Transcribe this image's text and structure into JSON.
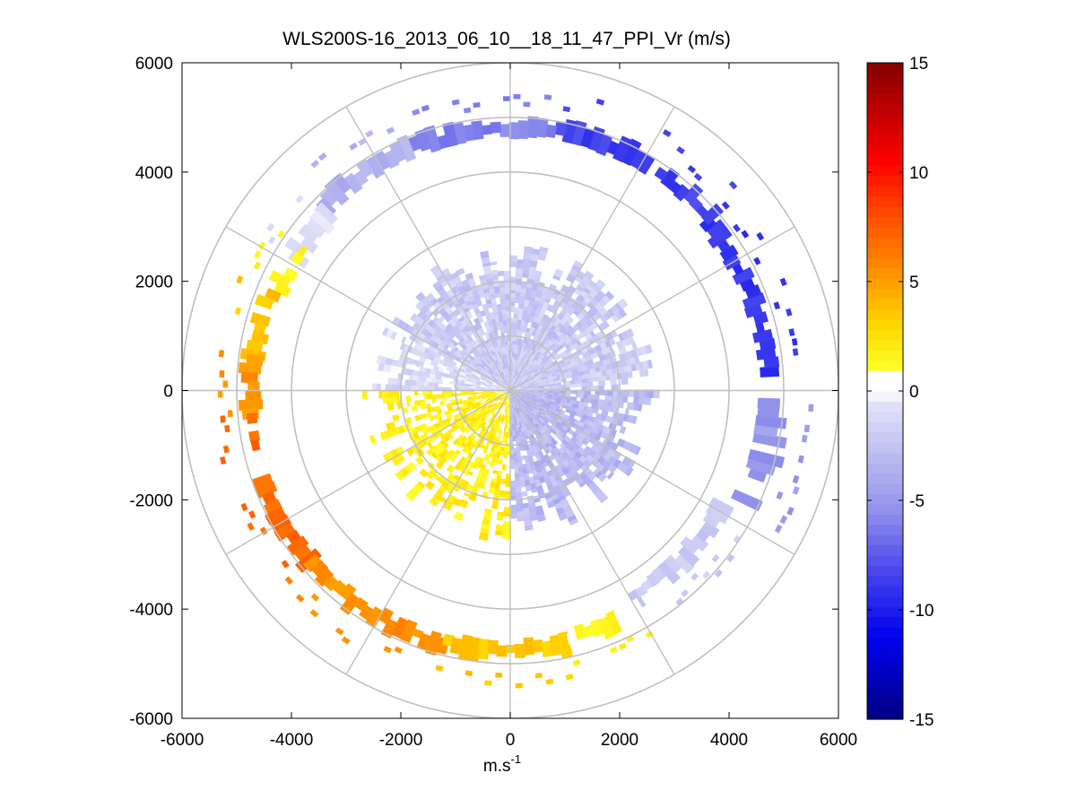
{
  "chart_data": {
    "type": "heatmap",
    "subtype": "polar-ppi-scan",
    "title": "WLS200S-16_2013_06_10__18_11_47_PPI_Vr (m/s)",
    "xlabel_base": "m.s",
    "xlabel_exp": "-1",
    "ylabel": "",
    "xlim": [
      -6000,
      6000
    ],
    "ylim": [
      -6000,
      6000
    ],
    "xticks": [
      -6000,
      -4000,
      -2000,
      0,
      2000,
      4000,
      6000
    ],
    "yticks": [
      -6000,
      -4000,
      -2000,
      0,
      2000,
      4000,
      6000
    ],
    "xtick_labels": [
      "-6000",
      "-4000",
      "-2000",
      "0",
      "2000",
      "4000",
      "6000"
    ],
    "ytick_labels": [
      "-6000",
      "-4000",
      "-2000",
      "0",
      "2000",
      "4000",
      "6000"
    ],
    "polar_grid": {
      "ring_radii": [
        1000,
        2000,
        3000,
        4000,
        5000,
        6000
      ],
      "spoke_angles_deg": [
        0,
        30,
        60,
        90,
        120,
        150,
        180,
        210,
        240,
        270,
        300,
        330
      ]
    },
    "colorbar": {
      "label": "",
      "range": [
        -15,
        15
      ],
      "ticks": [
        -15,
        -10,
        -5,
        0,
        5,
        10,
        15
      ],
      "tick_labels": [
        "-15",
        "-10",
        "-5",
        "0",
        "5",
        "10",
        "15"
      ],
      "colormap": "blue-white-red (white gap at 0 to 1)"
    },
    "inner_field": {
      "max_range_m": 2600,
      "sectors": [
        {
          "azimuth_from_deg": -90,
          "azimuth_to_deg": 0,
          "velocity_ms": -3
        },
        {
          "azimuth_from_deg": 0,
          "azimuth_to_deg": 150,
          "velocity_ms": -2
        },
        {
          "azimuth_from_deg": 150,
          "azimuth_to_deg": 180,
          "velocity_ms": -1
        },
        {
          "azimuth_from_deg": 180,
          "azimuth_to_deg": 270,
          "velocity_ms": 1.5
        }
      ]
    },
    "outer_arc_sectors": [
      {
        "azimuth_from_deg": -60,
        "azimuth_to_deg": -28,
        "r_inner_m": 4250,
        "r_outer_m": 4550,
        "velocity_ms": -2
      },
      {
        "azimuth_from_deg": -28,
        "azimuth_to_deg": -3,
        "r_inner_m": 4550,
        "r_outer_m": 5050,
        "velocity_ms": -5
      },
      {
        "azimuth_from_deg": 3,
        "azimuth_to_deg": 40,
        "r_inner_m": 4600,
        "r_outer_m": 4900,
        "velocity_ms": -9
      },
      {
        "azimuth_from_deg": 40,
        "azimuth_to_deg": 80,
        "r_inner_m": 4700,
        "r_outer_m": 5000,
        "velocity_ms": -8.5
      },
      {
        "azimuth_from_deg": 80,
        "azimuth_to_deg": 112,
        "r_inner_m": 4650,
        "r_outer_m": 4950,
        "velocity_ms": -6
      },
      {
        "azimuth_from_deg": 112,
        "azimuth_to_deg": 135,
        "r_inner_m": 4650,
        "r_outer_m": 4950,
        "velocity_ms": -3.5
      },
      {
        "azimuth_from_deg": 135,
        "azimuth_to_deg": 150,
        "r_inner_m": 4450,
        "r_outer_m": 4800,
        "velocity_ms": -1
      },
      {
        "azimuth_from_deg": 145,
        "azimuth_to_deg": 157,
        "r_inner_m": 4450,
        "r_outer_m": 4750,
        "velocity_ms": 1.5
      },
      {
        "azimuth_from_deg": 157,
        "azimuth_to_deg": 172,
        "r_inner_m": 4550,
        "r_outer_m": 4850,
        "velocity_ms": 3.5
      },
      {
        "azimuth_from_deg": 172,
        "azimuth_to_deg": 185,
        "r_inner_m": 4600,
        "r_outer_m": 4900,
        "velocity_ms": 5.5
      },
      {
        "azimuth_from_deg": 185,
        "azimuth_to_deg": 220,
        "r_inner_m": 4650,
        "r_outer_m": 4950,
        "velocity_ms": 7
      },
      {
        "azimuth_from_deg": 220,
        "azimuth_to_deg": 255,
        "r_inner_m": 4650,
        "r_outer_m": 4950,
        "velocity_ms": 5.5
      },
      {
        "azimuth_from_deg": 255,
        "azimuth_to_deg": 283,
        "r_inner_m": 4600,
        "r_outer_m": 4900,
        "velocity_ms": 3.5
      },
      {
        "azimuth_from_deg": 283,
        "azimuth_to_deg": 300,
        "r_inner_m": 4500,
        "r_outer_m": 4800,
        "velocity_ms": 1.5
      }
    ]
  }
}
